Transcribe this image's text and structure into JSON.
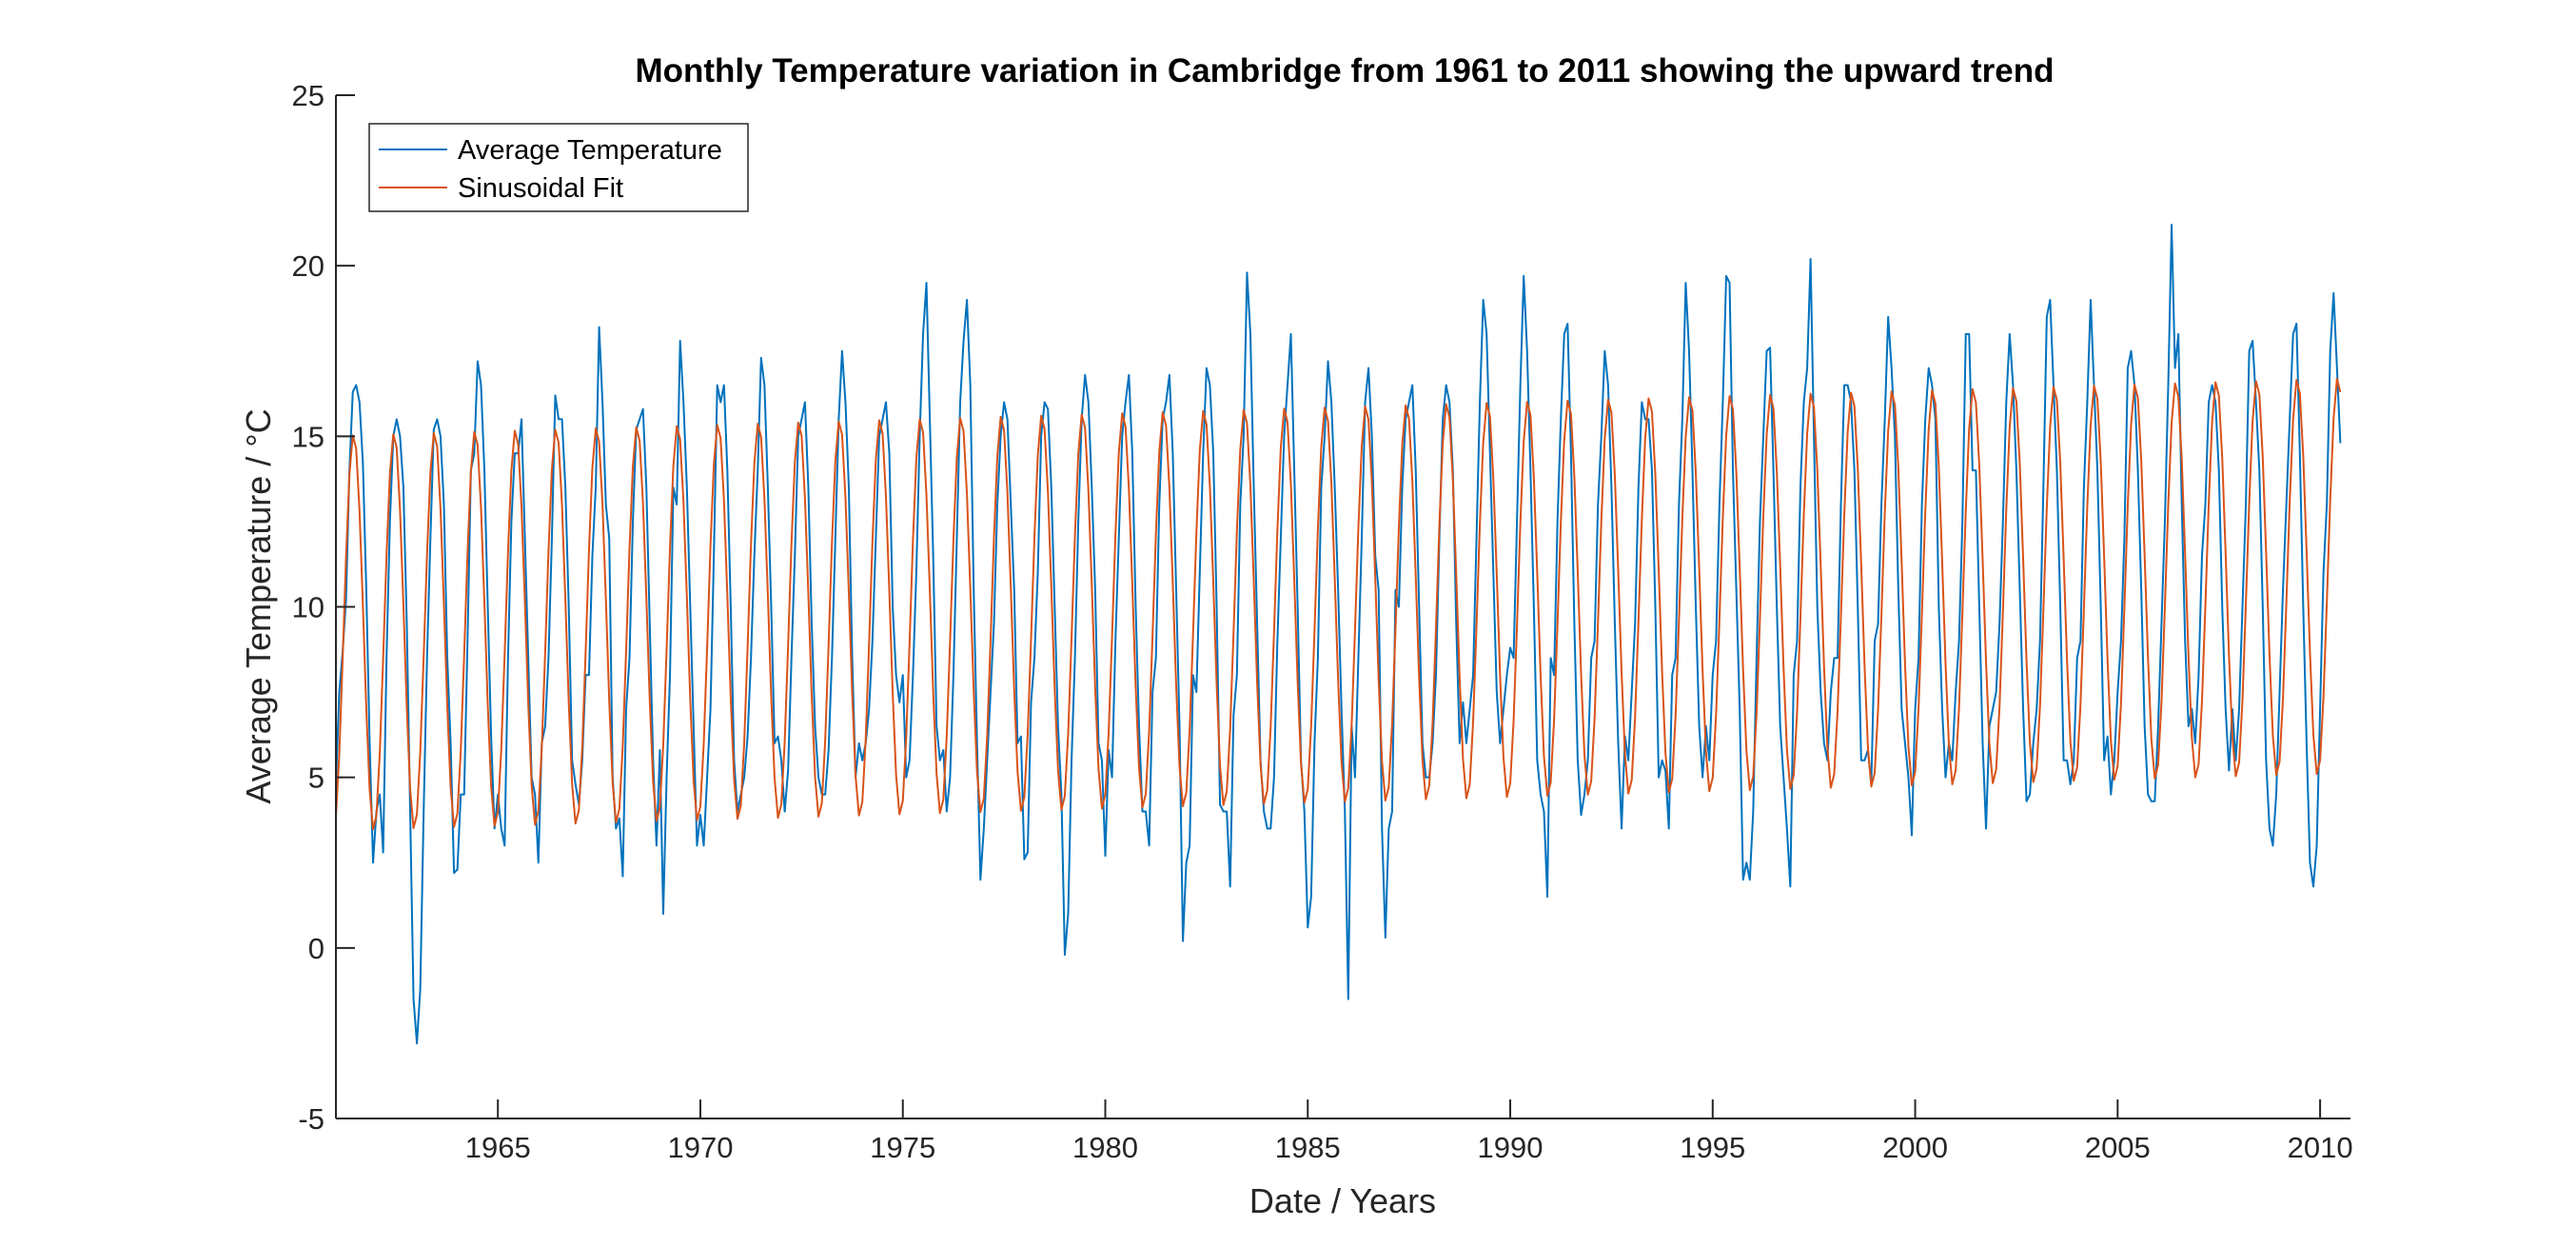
{
  "chart_data": {
    "type": "line",
    "title": "Monthly Temperature variation in Cambridge from 1961 to 2011 showing the upward trend",
    "xlabel": "Date / Years",
    "ylabel": "Average Temperature / °C",
    "xlim": [
      1961.0,
      2010.75
    ],
    "ylim": [
      -5,
      25
    ],
    "x_ticks": [
      1965,
      1970,
      1975,
      1980,
      1985,
      1990,
      1995,
      2000,
      2005,
      2010
    ],
    "x_tick_labels": [
      "1965",
      "1970",
      "1975",
      "1980",
      "1985",
      "1990",
      "1995",
      "2000",
      "2005",
      "2010"
    ],
    "y_ticks": [
      -5,
      0,
      5,
      10,
      15,
      20,
      25
    ],
    "y_tick_labels": [
      "-5",
      "0",
      "5",
      "10",
      "15",
      "20",
      "25"
    ],
    "grid": false,
    "legend_position": "top-left",
    "x_sampling": "monthly from 1961.0 to 2010.75, one value per month (step 1/12 year)",
    "series": [
      {
        "name": "Average Temperature",
        "color": "#0072BD",
        "values": [
          4.8,
          7.5,
          8.7,
          10.2,
          14.0,
          16.3,
          16.5,
          16.0,
          14.2,
          10.5,
          6.0,
          2.5,
          4.0,
          4.5,
          2.8,
          8.5,
          12.5,
          15.0,
          15.5,
          15.0,
          13.5,
          9.5,
          4.0,
          -1.5,
          -2.8,
          -1.2,
          4.0,
          8.5,
          12.0,
          15.2,
          15.5,
          15.0,
          13.0,
          8.5,
          6.0,
          2.2,
          2.3,
          4.5,
          4.5,
          9.0,
          14.0,
          14.5,
          17.2,
          16.5,
          14.0,
          10.0,
          6.2,
          3.5,
          4.5,
          3.5,
          3.0,
          8.5,
          12.5,
          14.5,
          14.5,
          15.5,
          12.0,
          8.5,
          5.0,
          4.5,
          2.5,
          6.0,
          6.5,
          8.5,
          12.0,
          16.2,
          15.5,
          15.5,
          13.5,
          10.0,
          5.5,
          4.8,
          4.2,
          5.5,
          8.0,
          8.0,
          11.5,
          13.5,
          18.2,
          16.0,
          13.0,
          12.0,
          5.0,
          3.5,
          3.8,
          2.1,
          7.0,
          8.5,
          12.5,
          15.2,
          15.5,
          15.8,
          13.5,
          9.5,
          5.5,
          3.0,
          5.8,
          1.0,
          5.0,
          8.0,
          13.5,
          13.0,
          17.8,
          16.0,
          13.5,
          10.0,
          6.5,
          3.0,
          3.9,
          3.0,
          5.0,
          7.0,
          11.5,
          16.5,
          16.0,
          16.5,
          14.0,
          10.0,
          5.5,
          4.0,
          4.5,
          5.0,
          6.2,
          8.5,
          11.5,
          14.0,
          17.3,
          16.5,
          13.5,
          10.0,
          6.0,
          6.2,
          5.5,
          4.0,
          5.2,
          8.5,
          11.5,
          15.0,
          15.5,
          16.0,
          13.5,
          9.5,
          6.5,
          5.0,
          4.5,
          4.5,
          5.8,
          8.5,
          12.0,
          15.5,
          17.5,
          16.0,
          13.5,
          8.5,
          5.0,
          6.0,
          5.5,
          6.0,
          7.0,
          9.0,
          12.0,
          15.0,
          15.5,
          16.0,
          14.5,
          10.0,
          8.0,
          7.2,
          8.0,
          5.0,
          5.5,
          8.0,
          11.0,
          15.0,
          18.0,
          19.5,
          15.5,
          11.5,
          6.5,
          5.5,
          5.8,
          4.0,
          5.0,
          8.0,
          12.0,
          16.0,
          17.8,
          19.0,
          16.5,
          10.5,
          6.0,
          2.0,
          3.5,
          5.5,
          7.5,
          9.5,
          13.0,
          15.0,
          16.0,
          15.5,
          13.0,
          10.5,
          6.0,
          6.2,
          2.6,
          2.8,
          7.2,
          8.5,
          11.0,
          15.0,
          16.0,
          15.8,
          13.5,
          10.0,
          6.5,
          4.5,
          -0.2,
          1.0,
          5.5,
          8.5,
          12.5,
          15.5,
          16.8,
          16.0,
          13.5,
          10.5,
          6.0,
          5.5,
          2.7,
          5.8,
          5.0,
          9.0,
          12.0,
          15.0,
          16.0,
          16.8,
          14.5,
          10.0,
          6.5,
          4.0,
          4.0,
          3.0,
          7.5,
          8.5,
          13.0,
          15.5,
          16.0,
          16.8,
          14.5,
          10.5,
          6.5,
          0.2,
          2.5,
          3.0,
          8.0,
          7.5,
          11.0,
          14.5,
          17.0,
          16.5,
          14.5,
          10.0,
          4.2,
          4.0,
          4.0,
          1.8,
          6.8,
          8.0,
          13.0,
          15.0,
          19.8,
          18.0,
          13.5,
          9.5,
          5.5,
          4.0,
          3.5,
          3.5,
          5.0,
          9.0,
          12.0,
          15.0,
          16.5,
          18.0,
          14.0,
          10.0,
          5.5,
          4.0,
          0.6,
          1.5,
          6.0,
          8.5,
          13.5,
          15.0,
          17.2,
          16.0,
          13.5,
          10.5,
          7.0,
          4.0,
          -1.5,
          6.5,
          5.0,
          8.5,
          12.0,
          16.0,
          17.0,
          15.0,
          11.5,
          10.5,
          3.5,
          0.3,
          3.5,
          4.0,
          10.5,
          10.0,
          13.5,
          15.5,
          16.0,
          16.5,
          14.0,
          10.0,
          6.0,
          5.0,
          5.0,
          6.0,
          8.0,
          12.0,
          15.5,
          16.5,
          16.0,
          14.0,
          9.5,
          6.0,
          7.2,
          6.0,
          7.0,
          8.0,
          12.0,
          16.0,
          19.0,
          18.0,
          14.5,
          11.0,
          7.5,
          6.0,
          7.0,
          8.0,
          8.8,
          8.5,
          12.5,
          16.5,
          19.7,
          17.5,
          14.0,
          10.0,
          5.5,
          4.5,
          4.0,
          1.5,
          8.5,
          8.0,
          12.5,
          15.5,
          18.0,
          18.3,
          14.5,
          9.5,
          5.5,
          3.9,
          4.5,
          5.5,
          8.5,
          9.0,
          13.0,
          15.0,
          17.5,
          16.5,
          13.5,
          9.5,
          6.0,
          3.5,
          6.2,
          5.5,
          7.5,
          9.5,
          13.5,
          16.0,
          15.5,
          15.5,
          14.0,
          10.0,
          5.0,
          5.5,
          5.2,
          3.5,
          8.0,
          8.5,
          13.0,
          15.5,
          19.5,
          17.5,
          14.0,
          10.0,
          6.5,
          5.0,
          6.5,
          5.5,
          8.0,
          9.0,
          13.0,
          16.0,
          19.7,
          19.5,
          14.0,
          10.5,
          7.0,
          2.0,
          2.5,
          2.0,
          4.0,
          8.5,
          12.5,
          15.0,
          17.5,
          17.6,
          14.0,
          10.0,
          6.5,
          5.0,
          3.5,
          1.8,
          8.0,
          9.0,
          13.5,
          16.0,
          17.0,
          20.2,
          15.0,
          10.0,
          7.5,
          6.0,
          5.5,
          7.5,
          8.5,
          8.5,
          13.0,
          16.5,
          16.5,
          16.0,
          14.0,
          10.0,
          5.5,
          5.5,
          5.8,
          4.8,
          9.0,
          9.5,
          13.0,
          15.5,
          18.5,
          17.0,
          15.0,
          10.5,
          7.0,
          6.0,
          5.0,
          3.3,
          7.0,
          8.5,
          13.0,
          15.5,
          17.0,
          16.5,
          15.5,
          10.0,
          7.0,
          5.0,
          6.0,
          5.5,
          7.5,
          9.0,
          12.5,
          18.0,
          18.0,
          14.0,
          14.0,
          10.0,
          6.0,
          3.5,
          6.5,
          7.0,
          7.5,
          9.5,
          12.5,
          16.0,
          18.0,
          16.5,
          14.0,
          10.5,
          7.0,
          4.3,
          4.5,
          6.0,
          7.0,
          9.0,
          13.5,
          18.5,
          19.0,
          16.5,
          14.0,
          10.0,
          5.5,
          5.5,
          4.8,
          5.5,
          8.5,
          9.0,
          13.5,
          16.0,
          19.0,
          16.5,
          14.0,
          10.0,
          5.5,
          6.2,
          4.5,
          5.5,
          7.5,
          9.0,
          12.0,
          17.0,
          17.5,
          16.5,
          14.0,
          10.5,
          6.5,
          4.5,
          4.3,
          4.3,
          6.5,
          9.5,
          12.5,
          16.5,
          21.2,
          17.0,
          18.0,
          13.0,
          9.0,
          6.5,
          7.0,
          6.0,
          8.0,
          11.5,
          13.0,
          16.0,
          16.5,
          16.0,
          14.0,
          10.0,
          7.0,
          5.2,
          7.0,
          5.5,
          7.0,
          10.0,
          13.0,
          17.5,
          17.8,
          16.0,
          14.0,
          10.0,
          5.5,
          3.5,
          3.0,
          4.5,
          7.5,
          10.5,
          13.0,
          15.5,
          18.0,
          18.3,
          14.5,
          10.0,
          6.0,
          2.5,
          1.8,
          3.0,
          7.0,
          11.0,
          13.0,
          17.5,
          19.2,
          17.0,
          14.8
        ]
      },
      {
        "name": "Sinusoidal Fit",
        "color": "#D95319",
        "model_label": "",
        "values": []
      }
    ]
  }
}
